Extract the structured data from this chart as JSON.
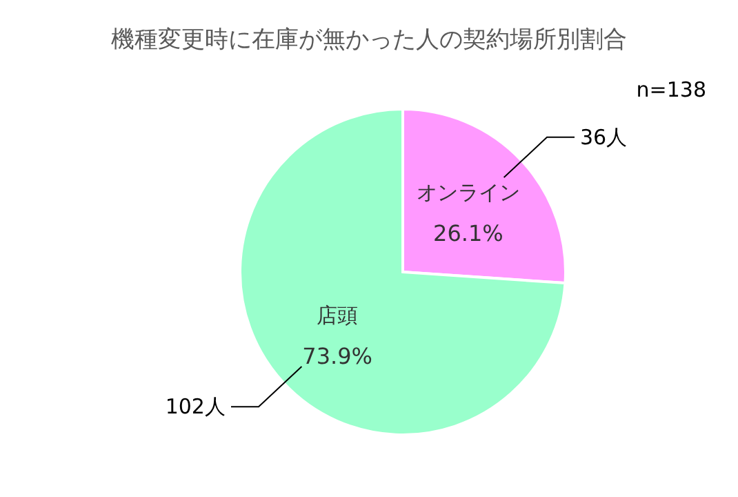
{
  "chart_data": {
    "type": "pie",
    "title": "機種変更時に在庫が無かった人の契約場所別割合",
    "categories": [
      "オンライン",
      "店頭"
    ],
    "values": [
      36,
      102
    ],
    "colors": [
      "#ff99ff",
      "#99ffcc"
    ],
    "value_labels": [
      "36人",
      "102人"
    ],
    "annotations": [
      "n=138",
      "26.1%",
      "73.9%"
    ],
    "legend": false
  }
}
